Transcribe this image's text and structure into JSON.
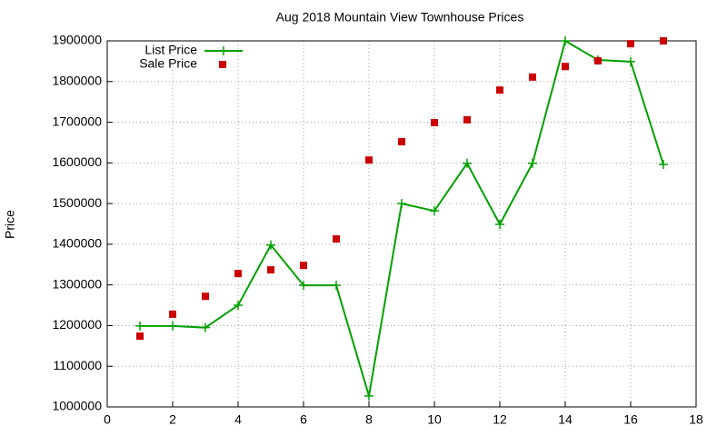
{
  "chart_data": {
    "type": "line",
    "title": "Aug 2018 Mountain View Townhouse Prices",
    "y_label": "Price",
    "x": [
      1,
      2,
      3,
      4,
      5,
      6,
      7,
      8,
      9,
      10,
      11,
      12,
      13,
      14,
      15,
      16,
      17
    ],
    "series": [
      {
        "name": "List Price",
        "color": "#00a000",
        "style": "linespoints",
        "values": [
          1199000,
          1199000,
          1195000,
          1250000,
          1398000,
          1299000,
          1299000,
          1027000,
          1500000,
          1482000,
          1599000,
          1449000,
          1599000,
          1900000,
          1853000,
          1849000,
          1596000
        ]
      },
      {
        "name": "Sale Price",
        "color": "#cc0000",
        "style": "points",
        "values": [
          1174000,
          1228000,
          1272000,
          1328000,
          1337000,
          1348000,
          1413000,
          1607000,
          1652000,
          1699000,
          1706000,
          1779000,
          1811000,
          1837000,
          1851000,
          1893000,
          1900000
        ]
      }
    ],
    "xlim": [
      0,
      18
    ],
    "xticks": [
      0,
      2,
      4,
      6,
      8,
      10,
      12,
      14,
      16,
      18
    ],
    "ylim": [
      1000000,
      1900000
    ],
    "yticks": [
      1000000,
      1100000,
      1200000,
      1300000,
      1400000,
      1500000,
      1600000,
      1700000,
      1800000,
      1900000
    ],
    "grid": true,
    "legend": "top-left"
  }
}
